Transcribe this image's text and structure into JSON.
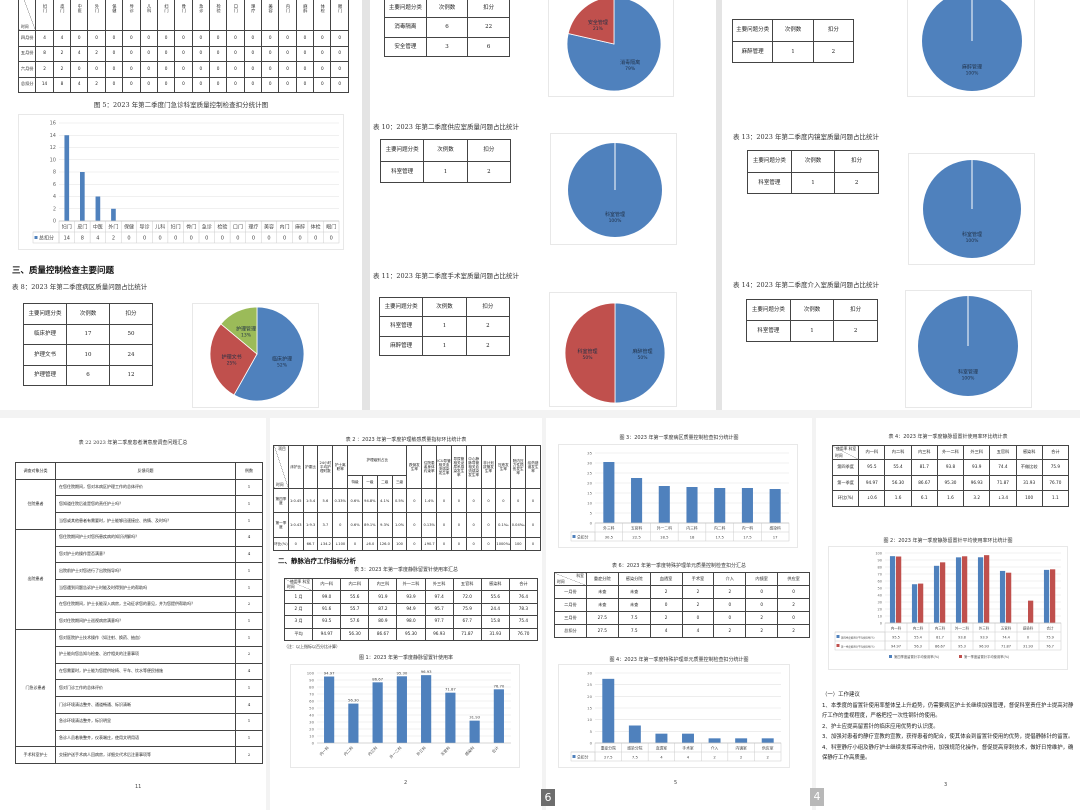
{
  "viewer": {
    "page_badges": [
      "6",
      "4"
    ]
  },
  "page_a": {
    "table7": {
      "corner": {
        "tr": "科室",
        "bl": "时间"
      },
      "headers": [
        "妇门",
        "皮门",
        "中医",
        "外门",
        "保健",
        "导诊",
        "儿科",
        "妇门",
        "骨门",
        "急诊",
        "检验",
        "口门",
        "理疗",
        "美容",
        "内门",
        "麻醉",
        "体检",
        "眼门"
      ],
      "rows": [
        [
          "四月份",
          "4",
          "4",
          "0",
          "0",
          "0",
          "0",
          "0",
          "0",
          "0",
          "0",
          "0",
          "0",
          "0",
          "0",
          "0",
          "0",
          "0",
          "0"
        ],
        [
          "五月份",
          "8",
          "2",
          "4",
          "2",
          "0",
          "0",
          "0",
          "0",
          "0",
          "0",
          "0",
          "0",
          "0",
          "0",
          "0",
          "0",
          "0",
          "0"
        ],
        [
          "六月份",
          "2",
          "2",
          "0",
          "0",
          "0",
          "0",
          "0",
          "0",
          "0",
          "0",
          "0",
          "0",
          "0",
          "0",
          "0",
          "0",
          "0",
          "0"
        ],
        [
          "总扣分",
          "14",
          "8",
          "4",
          "2",
          "0",
          "0",
          "0",
          "0",
          "0",
          "0",
          "0",
          "0",
          "0",
          "0",
          "0",
          "0",
          "0",
          "0"
        ]
      ]
    },
    "fig5_caption": "图 5：2023 年第二季度门急诊科室质量控制检查扣分统计图",
    "section_title": "三、质量控制检查主要问题",
    "table8_caption": "表 8：2023 年第二季度病区质量问题占比统计",
    "table8": {
      "headers": [
        "主要问题分类",
        "次例数",
        "扣分"
      ],
      "rows": [
        [
          "临床护理",
          "17",
          "50"
        ],
        [
          "护理文书",
          "10",
          "24"
        ],
        [
          "护理管理",
          "6",
          "12"
        ]
      ]
    }
  },
  "page_b": {
    "table9": {
      "headers": [
        "主要问题分类",
        "次例数",
        "扣分"
      ],
      "rows": [
        [
          "消毒隔离",
          "6",
          "22"
        ],
        [
          "安全管理",
          "3",
          "6"
        ]
      ]
    },
    "table10_caption": "表 10：2023 年第二季度供应室质量问题占比统计",
    "table10": {
      "headers": [
        "主要问题分类",
        "次例数",
        "扣分"
      ],
      "rows": [
        [
          "科室管理",
          "1",
          "2"
        ]
      ]
    },
    "table11_caption": "表 11：2023 年第二季度手术室质量问题占比统计",
    "table11": {
      "headers": [
        "主要问题分类",
        "次例数",
        "扣分"
      ],
      "rows": [
        [
          "科室管理",
          "1",
          "2"
        ],
        [
          "麻醉管理",
          "1",
          "2"
        ]
      ]
    }
  },
  "page_c": {
    "table12": {
      "headers": [
        "主要问题分类",
        "次例数",
        "扣分"
      ],
      "rows": [
        [
          "麻醉管理",
          "1",
          "2"
        ]
      ]
    },
    "table13_caption": "表 13：2023 年第二季度内镜室质量问题占比统计",
    "table13": {
      "headers": [
        "主要问题分类",
        "次例数",
        "扣分"
      ],
      "rows": [
        [
          "科室管理",
          "1",
          "2"
        ]
      ]
    },
    "table14_caption": "表 14：2023 年第二季度介入室质量问题占比统计",
    "table14": {
      "headers": [
        "主要问题分类",
        "次例数",
        "扣分"
      ],
      "rows": [
        [
          "科室管理",
          "1",
          "2"
        ]
      ]
    }
  },
  "page_d": {
    "caption": "表 22 2023 年第二季度患者满意度调查问题汇总",
    "headers": [
      "调查对象分类",
      "反馈问题",
      "例数"
    ],
    "groups": [
      {
        "name": "住院患者",
        "items": [
          {
            "q": "在您住院期间，您对本病区护理工作的总体评价",
            "n": "1"
          },
          {
            "q": "您知道住院后谁是您的责任护士吗？",
            "n": "1"
          },
          {
            "q": "当您或其他患者有需要时，护士能够迅速接应、热情、及时吗？",
            "n": "1"
          }
        ]
      },
      {
        "name": "出院患者",
        "items": [
          {
            "q": "您住院期间护士对您所患疾病的知识讲解吗？",
            "n": "4"
          },
          {
            "q": "您对护士的操作是否满意？",
            "n": "4"
          },
          {
            "q": "出院前护士对您进行了出院指导吗？",
            "n": "1"
          },
          {
            "q": "当您遇到问题告诉护士时能及时得到护士的帮助吗",
            "n": "1"
          },
          {
            "q": "在您住院期间，护士长能深入病房，主动征求您的意见，并为您提供帮助吗？",
            "n": "2"
          },
          {
            "q": "您对住院期间护士巡视病房满意吗？",
            "n": "1"
          }
        ]
      },
      {
        "name": "门急诊患者",
        "items": [
          {
            "q": "您对医院护士技术操作（如注射、换药、抽血）",
            "n": "1"
          },
          {
            "q": "护士能向您告知与检查、治疗相关的注意事项",
            "n": "2"
          },
          {
            "q": "在您需要时，护士能为您提供轮椅、平车、饮水等便民措施",
            "n": "4"
          },
          {
            "q": "您对门诊工作的总体评价",
            "n": "1"
          },
          {
            "q": "门诊环境清洁整齐、通道畅通、标识清晰",
            "n": "4"
          },
          {
            "q": "急诊环境清洁整齐，标识明显",
            "n": "1"
          },
          {
            "q": "急诊人员着装整齐，仪表端庄，使用文明用语",
            "n": "1"
          }
        ]
      },
      {
        "name": "手术科室护士",
        "items": [
          {
            "q": "交接护送手术病人回病房，详细交代术后注意事项等",
            "n": "2"
          }
        ]
      }
    ],
    "page_number": "11"
  },
  "page_e": {
    "table2_caption": "表 2 ：2023 年第一季度护理敏感质量指标环比统计表",
    "table2": {
      "corner": {
        "tr": "项目",
        "bl": "时间"
      },
      "headers_a": [
        "床护比",
        "护患比",
        "24小时平均护理时数",
        "护士离职率"
      ],
      "group": "护理级别占比",
      "group_sub": [
        "特级",
        "一级",
        "二级",
        "三级"
      ],
      "headers_b": [
        "跌倒发生率",
        "住院患者身体约束率",
        "ICU导管相关血流感染发生率",
        "导尿管相关泌尿系感染发生率",
        "中心静脉导管相关血流感染发生率",
        "非计划拔管发生率",
        "压疮发生率",
        "院内压力性损伤发生率",
        "给药错误发生率"
      ],
      "rows": [
        [
          "第四季度",
          "1:0.45",
          "1:5.4",
          "5.6",
          "0.33%",
          "0.6%",
          "94.8%",
          "4.1%",
          "0.5%",
          "0",
          "1.4%",
          "0",
          "0",
          "0",
          "0",
          "0",
          "0",
          "0"
        ],
        [
          "第一季度",
          "1:0.43",
          "1:9.3",
          "3.7",
          "0",
          "0.6%",
          "89.1%",
          "9.3%",
          "1.0%",
          "0",
          "0.13%",
          "0",
          "0",
          "0",
          "0",
          "0.1‰",
          "0.04‰",
          "0"
        ],
        [
          "环比(%)",
          "0",
          "66.7",
          "↓34.2",
          "↓100",
          "0",
          "↓6.0",
          "126.0",
          "100",
          "0",
          "↓90.7",
          "0",
          "0",
          "0",
          "0",
          "1000‰",
          "100",
          "0"
        ]
      ]
    },
    "section_title": "二、静脉治疗工作指标分析",
    "table3_caption": "表 3：2023 年第一季度静脉留置针使用率汇总",
    "table3": {
      "corner": {
        "tr": "使用率  科室",
        "bl": "时间"
      },
      "headers": [
        "内一科",
        "内二科",
        "内三科",
        "外一二科",
        "外三科",
        "五官科",
        "感染科",
        "合计"
      ],
      "rows": [
        [
          "1 月",
          "99.0",
          "55.6",
          "91.9",
          "93.9",
          "97.4",
          "72.0",
          "55.6",
          "76.4"
        ],
        [
          "2 月",
          "91.6",
          "55.7",
          "87.2",
          "94.9",
          "95.7",
          "75.9",
          "24.4",
          "78.3"
        ],
        [
          "3 月",
          "93.5",
          "57.6",
          "80.9",
          "98.0",
          "97.7",
          "67.7",
          "15.8",
          "75.4"
        ],
        [
          "平均",
          "94.97",
          "56.30",
          "86.67",
          "95.30",
          "96.93",
          "71.87",
          "31.93",
          "76.70"
        ]
      ]
    },
    "table3_note": "（注：以上指标以百分比计算）",
    "fig1_caption": "图 1：2023 年第一季度静脉留置针使用率",
    "page_number": "2"
  },
  "page_f": {
    "fig3_caption": "图 3：2023 年第一季度病区质量控制检查扣分统计图",
    "table6_caption": "表 6：2023 年第一季度特殊护理单元质量控制检查扣分汇总",
    "table6": {
      "corner": {
        "tr": "科室",
        "bl": "时间"
      },
      "headers": [
        "重症分院",
        "感染分院",
        "血透室",
        "手术室",
        "介入",
        "内镜室",
        "供应室"
      ],
      "rows": [
        [
          "一月份",
          "未查",
          "未查",
          "2",
          "2",
          "2",
          "0",
          "0"
        ],
        [
          "二月份",
          "未查",
          "未查",
          "0",
          "2",
          "0",
          "0",
          "2"
        ],
        [
          "三月份",
          "27.5",
          "7.5",
          "2",
          "0",
          "0",
          "2",
          "0"
        ],
        [
          "总扣分",
          "27.5",
          "7.5",
          "4",
          "4",
          "2",
          "2",
          "2"
        ]
      ]
    },
    "fig4_caption": "图 4：2023 年第一季度特殊护理单元质量控制检查扣分统计图",
    "page_number": "5"
  },
  "page_g": {
    "table4_caption": "表 4：2023 年第一季度静脉留置针使用率环比统计表",
    "table4": {
      "corner": {
        "tr": "使用率  科室",
        "bl": "时间"
      },
      "headers": [
        "内一科",
        "内二科",
        "内三科",
        "外一二科",
        "外三科",
        "五官科",
        "感染科",
        "合计"
      ],
      "rows": [
        [
          "第四季度",
          "95.5",
          "55.4",
          "81.7",
          "93.8",
          "93.9",
          "74.4",
          "不做比较",
          "75.9"
        ],
        [
          "第一季度",
          "94.97",
          "56.30",
          "86.67",
          "95.30",
          "96.93",
          "71.87",
          "31.93",
          "76.70"
        ],
        [
          "环比(%)",
          "↓0.6",
          "1.6",
          "6.1",
          "1.6",
          "3.2",
          "↓3.4",
          "100",
          "1.1"
        ]
      ]
    },
    "fig2_caption": "图 2：2023 年第一季度静脉留置针平均使用率环比统计图",
    "suggest_title": "（一）工作建议",
    "suggestions": [
      "1、本季度的留置针使用率整体呈上升趋势，仍需要病区护士长继续加强管理，督促科室责任护士提高对静疗工作的重视程度，严格把控一次性钢针的使用。",
      "2、护士应提高留置针的临床应用优势的认识度。",
      "3、加强对患者的静疗宣教的宣教，获得患者的配合，使其体会到留置针使用的优势，提倡静脉针的留置。",
      "4、科室静疗小组及静疗护士继续发挥带动作用，加强规范化操作，督促提高穿刺技术，做好日常维护，确保静疗工作高质量。"
    ],
    "page_number": "3"
  },
  "colors": {
    "blue": "#4F81BD",
    "red": "#C0504D",
    "green": "#9BBB59"
  },
  "chart_data": [
    {
      "type": "bar",
      "title": "图 5：2023 年第二季度门急诊科室质量控制检查扣分统计图",
      "categories": [
        "妇门",
        "皮门",
        "中医",
        "外门",
        "保健",
        "导诊",
        "儿科",
        "妇门",
        "骨门",
        "急诊",
        "检验",
        "口门",
        "理疗",
        "美容",
        "内门",
        "麻醉",
        "体检",
        "眼门"
      ],
      "series": [
        {
          "name": "总扣分",
          "values": [
            14,
            8,
            4,
            2,
            0,
            0,
            0,
            0,
            0,
            0,
            0,
            0,
            0,
            0,
            0,
            0,
            0,
            0
          ]
        }
      ],
      "ylim": [
        0,
        16
      ],
      "yticks": [
        0,
        2,
        4,
        6,
        8,
        10,
        12,
        14,
        16
      ],
      "grid": true,
      "legend": "data-table"
    },
    {
      "type": "pie",
      "title": "表 8 病区质量问题占比",
      "labels": [
        "临床护理",
        "护理文书",
        "护理管理"
      ],
      "values": [
        50,
        24,
        12
      ],
      "percents": [
        "52%",
        "25%",
        "13%"
      ]
    },
    {
      "type": "pie",
      "title": "表 9 质量问题占比",
      "labels": [
        "消毒隔离",
        "安全管理"
      ],
      "values": [
        22,
        6
      ],
      "percents": [
        "79%",
        "21%"
      ]
    },
    {
      "type": "pie",
      "title": "表 10 供应室质量问题占比",
      "labels": [
        "科室管理"
      ],
      "values": [
        2
      ],
      "percents": [
        "100%"
      ]
    },
    {
      "type": "pie",
      "title": "表 11 手术室质量问题占比",
      "labels": [
        "麻醉管理",
        "科室管理"
      ],
      "values": [
        2,
        2
      ],
      "percents": [
        "50%",
        "50%"
      ]
    },
    {
      "type": "pie",
      "title": "表 12 质量问题占比",
      "labels": [
        "麻醉管理"
      ],
      "values": [
        2
      ],
      "percents": [
        "100%"
      ]
    },
    {
      "type": "pie",
      "title": "表 13 内镜室质量问题占比",
      "labels": [
        "科室管理"
      ],
      "values": [
        2
      ],
      "percents": [
        "100%"
      ]
    },
    {
      "type": "pie",
      "title": "表 14 介入室质量问题占比",
      "labels": [
        "科室管理"
      ],
      "values": [
        2
      ],
      "percents": [
        "100%"
      ]
    },
    {
      "type": "bar",
      "title": "图 1：2023 年第一季度静脉留置针使用率",
      "categories": [
        "内一科",
        "内二科",
        "内三科",
        "外一二科",
        "外三科",
        "五官科",
        "感染科",
        "合计"
      ],
      "series": [
        {
          "name": "使用率",
          "values": [
            94.97,
            56.3,
            86.67,
            95.3,
            96.93,
            71.87,
            31.93,
            76.7
          ],
          "labels": [
            "94.97",
            "56.30",
            "86.67",
            "95.30",
            "96.93",
            "71.87",
            "31.93",
            "76.70"
          ]
        }
      ],
      "ylim": [
        0,
        100
      ],
      "yticks": [
        0,
        10,
        20,
        30,
        40,
        50,
        60,
        70,
        80,
        90,
        100
      ],
      "grid": true
    },
    {
      "type": "bar",
      "title": "图 3：2023 年第一季度病区质量控制检查扣分统计图",
      "categories": [
        "外三科",
        "五官科",
        "外一二科",
        "内三科",
        "内二科",
        "内一科",
        "感染科"
      ],
      "series": [
        {
          "name": "总扣分",
          "values": [
            30.5,
            22.5,
            18.5,
            18,
            17.5,
            17.5,
            17
          ]
        }
      ],
      "ylim": [
        0,
        35
      ],
      "yticks": [
        0,
        5,
        10,
        15,
        20,
        25,
        30,
        35
      ],
      "grid": true,
      "legend": "data-table"
    },
    {
      "type": "bar",
      "title": "图 4：2023 年第一季度特殊护理单元质量控制检查扣分统计图",
      "categories": [
        "重症分院",
        "感染分院",
        "血透室",
        "手术室",
        "介入",
        "内镜室",
        "供应室"
      ],
      "series": [
        {
          "name": "总扣分",
          "values": [
            27.5,
            7.5,
            4,
            4,
            2,
            2,
            2
          ]
        }
      ],
      "ylim": [
        0,
        30
      ],
      "yticks": [
        0,
        5,
        10,
        15,
        20,
        25,
        30
      ],
      "grid": true,
      "legend": "data-table"
    },
    {
      "type": "bar",
      "title": "图 2：2023 年第一季度静脉留置针平均使用率环比统计图",
      "categories": [
        "内一科",
        "内二科",
        "内三科",
        "外一二科",
        "外三科",
        "五官科",
        "感染科",
        "合计"
      ],
      "series": [
        {
          "name": "第四季度留置针平均使用率(%)",
          "values": [
            95.5,
            55.4,
            81.7,
            93.8,
            93.9,
            74.4,
            0,
            75.9
          ]
        },
        {
          "name": "第一季度留置针平均使用率(%)",
          "values": [
            94.97,
            56.3,
            86.67,
            95.3,
            96.93,
            71.87,
            31.93,
            76.7
          ]
        }
      ],
      "ylim": [
        0,
        100
      ],
      "yticks": [
        0,
        10,
        20,
        30,
        40,
        50,
        60,
        70,
        80,
        90,
        100
      ],
      "grid": true,
      "legend": "bottom"
    }
  ]
}
